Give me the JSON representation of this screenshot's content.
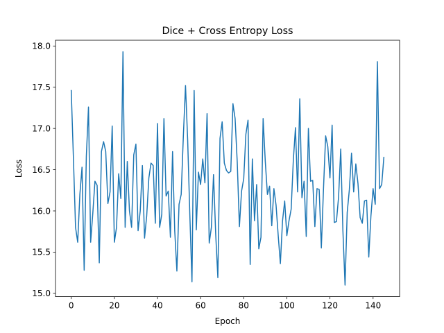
{
  "chart_data": {
    "type": "line",
    "title": "Dice + Cross Entropy Loss",
    "xlabel": "Epoch",
    "ylabel": "Loss",
    "xlim": [
      -7.3,
      152.3
    ],
    "ylim": [
      14.96,
      18.07
    ],
    "xticks": [
      0,
      20,
      40,
      60,
      80,
      100,
      120,
      140
    ],
    "yticks": [
      15.0,
      15.5,
      16.0,
      16.5,
      17.0,
      17.5,
      18.0
    ],
    "ytick_labels": [
      "15.0",
      "15.5",
      "16.0",
      "16.5",
      "17.0",
      "17.5",
      "18.0"
    ],
    "grid": false,
    "line_color": "#1f77b4",
    "series": [
      {
        "values": [
          17.46,
          16.65,
          15.8,
          15.62,
          16.2,
          16.53,
          15.28,
          16.66,
          17.26,
          15.62,
          15.97,
          16.36,
          16.31,
          15.37,
          16.72,
          16.84,
          16.72,
          16.09,
          16.23,
          17.03,
          15.62,
          15.8,
          16.45,
          16.15,
          17.93,
          15.8,
          16.6,
          16.0,
          15.8,
          16.68,
          16.81,
          15.76,
          16.0,
          16.55,
          15.67,
          15.94,
          16.4,
          16.58,
          16.55,
          15.85,
          17.06,
          15.8,
          15.96,
          17.12,
          16.18,
          16.24,
          15.68,
          16.72,
          15.76,
          15.27,
          16.08,
          16.2,
          16.91,
          17.52,
          16.86,
          15.96,
          15.14,
          17.46,
          15.77,
          16.47,
          16.32,
          16.63,
          16.34,
          17.18,
          15.61,
          15.8,
          16.44,
          15.72,
          15.19,
          16.88,
          17.08,
          16.58,
          16.49,
          16.46,
          16.48,
          17.3,
          17.12,
          16.59,
          15.81,
          16.24,
          16.39,
          16.93,
          17.1,
          15.35,
          16.63,
          15.88,
          16.32,
          15.54,
          15.68,
          17.12,
          16.6,
          16.2,
          16.3,
          15.82,
          16.27,
          16.07,
          15.7,
          15.36,
          15.88,
          16.12,
          15.7,
          15.88,
          16.02,
          16.61,
          17.01,
          16.23,
          17.36,
          16.16,
          16.36,
          15.69,
          17.0,
          16.36,
          16.37,
          15.81,
          16.27,
          16.26,
          15.55,
          16.27,
          16.91,
          16.78,
          16.4,
          17.04,
          15.86,
          15.87,
          16.17,
          16.75,
          15.76,
          15.1,
          15.98,
          16.26,
          16.7,
          16.23,
          16.57,
          16.33,
          15.92,
          15.85,
          16.12,
          16.13,
          15.44,
          15.94,
          16.27,
          16.08,
          17.81,
          16.27,
          16.32,
          16.65
        ]
      }
    ]
  }
}
